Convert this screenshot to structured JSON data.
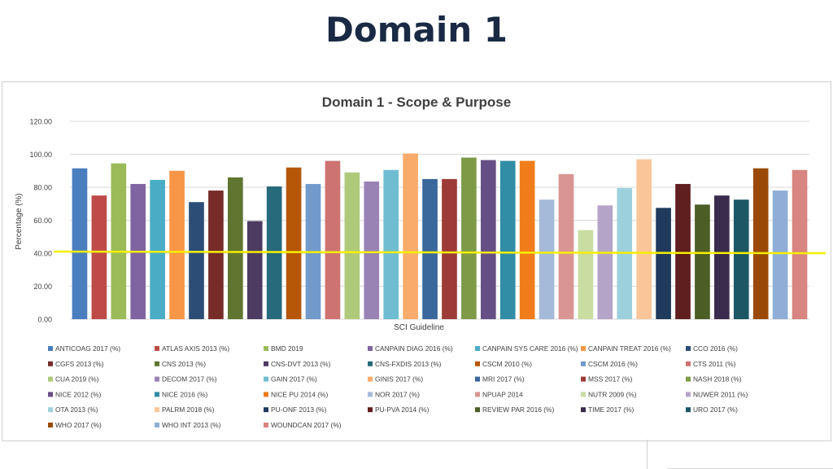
{
  "slide": {
    "title": "Domain 1"
  },
  "colors": {
    "threshold_line": "#f5ef00",
    "gridline": "#d9d9d9",
    "title_text": "#1a2a44"
  },
  "chart_data": {
    "type": "bar",
    "title": "Domain 1 - Scope & Purpose",
    "xlabel": "SCI Guideline",
    "ylabel": "Percentage (%)",
    "ylim": [
      0,
      120
    ],
    "yticks": [
      "0.00",
      "20.00",
      "40.00",
      "60.00",
      "80.00",
      "100.00",
      "120.00"
    ],
    "grid": true,
    "legend_position": "bottom",
    "threshold": {
      "value": 41,
      "end_value": 40,
      "color": "#f5ef00"
    },
    "series": [
      {
        "name": "ANTICOAG 2017 (%)",
        "value": 91.5,
        "color": "#4a7ebe"
      },
      {
        "name": "ATLAS AXIS 2013 (%)",
        "value": 75,
        "color": "#be4b48"
      },
      {
        "name": "BMD 2019",
        "value": 94.5,
        "color": "#9bbb59"
      },
      {
        "name": "CANPAIN DIAG 2016 (%)",
        "value": 82,
        "color": "#8064a2"
      },
      {
        "name": "CANPAIN SYS CARE 2016 (%)",
        "value": 84.5,
        "color": "#4bacc6"
      },
      {
        "name": "CANPAIN TREAT 2016 (%)",
        "value": 90,
        "color": "#f79646"
      },
      {
        "name": "CCO 2016 (%)",
        "value": 71,
        "color": "#2c4d75"
      },
      {
        "name": "CGFS 2013 (%)",
        "value": 78,
        "color": "#772c2a"
      },
      {
        "name": "CNS 2013 (%)",
        "value": 86,
        "color": "#5f7530"
      },
      {
        "name": "CNS-DVT 2013 (%)",
        "value": 59.5,
        "color": "#4d3b62"
      },
      {
        "name": "CNS-FXDIS 2013 (%)",
        "value": 80.5,
        "color": "#276a7c"
      },
      {
        "name": "CSCM 2010 (%)",
        "value": 92,
        "color": "#b65708"
      },
      {
        "name": "CSCM 2016 (%)",
        "value": 82,
        "color": "#729aca"
      },
      {
        "name": "CTS 2011 (%)",
        "value": 96,
        "color": "#cd7371"
      },
      {
        "name": "CUA 2019 (%)",
        "value": 89,
        "color": "#afc97a"
      },
      {
        "name": "DECOM 2017 (%)",
        "value": 83.5,
        "color": "#9983b5"
      },
      {
        "name": "GAIN 2017 (%)",
        "value": 90.5,
        "color": "#6fbdd1"
      },
      {
        "name": "GINIS 2017 (%)",
        "value": 100.5,
        "color": "#f9ab6b"
      },
      {
        "name": "MRI 2017 (%)",
        "value": 85,
        "color": "#3a679c"
      },
      {
        "name": "MSS 2017 (%)",
        "value": 85,
        "color": "#9c3b38"
      },
      {
        "name": "NASH 2018  (%)",
        "value": 98,
        "color": "#7f9a47"
      },
      {
        "name": "NICE 2012  (%)",
        "value": 96.5,
        "color": "#664f85"
      },
      {
        "name": "NICE 2016  (%)",
        "value": 96,
        "color": "#318ca5"
      },
      {
        "name": "NICE PU 2014  (%)",
        "value": 96,
        "color": "#f07d1a"
      },
      {
        "name": "NOR 2017  (%)",
        "value": 72.5,
        "color": "#a5bad9"
      },
      {
        "name": "NPUAP 2014",
        "value": 88,
        "color": "#d99593"
      },
      {
        "name": "NUTR 2009  (%)",
        "value": 54,
        "color": "#c9dca1"
      },
      {
        "name": "NUWER 2011 (%)",
        "value": 69,
        "color": "#b4a5c8"
      },
      {
        "name": "OTA 2013 (%)",
        "value": 79.5,
        "color": "#9dd0dd"
      },
      {
        "name": "PALRM 2018 (%)",
        "value": 97,
        "color": "#fbc59a"
      },
      {
        "name": "PU-ONF 2013 (%)",
        "value": 67.5,
        "color": "#1f3a5c"
      },
      {
        "name": "PU-PVA 2014 (%)",
        "value": 82,
        "color": "#5f1f1e"
      },
      {
        "name": "REVIEW PAR 2016 (%)",
        "value": 69.5,
        "color": "#4c5e26"
      },
      {
        "name": "TIME 2017 (%)",
        "value": 75,
        "color": "#3a2c4c"
      },
      {
        "name": "URO 2017 (%)",
        "value": 72.5,
        "color": "#1d5766"
      },
      {
        "name": "WHO 2017 (%)",
        "value": 91.5,
        "color": "#9a4a06"
      },
      {
        "name": "WHO INT 2013 (%)",
        "value": 78,
        "color": "#8fadd6"
      },
      {
        "name": "WOUNDCAN 2017 (%)",
        "value": 90.5,
        "color": "#d88480"
      }
    ]
  }
}
